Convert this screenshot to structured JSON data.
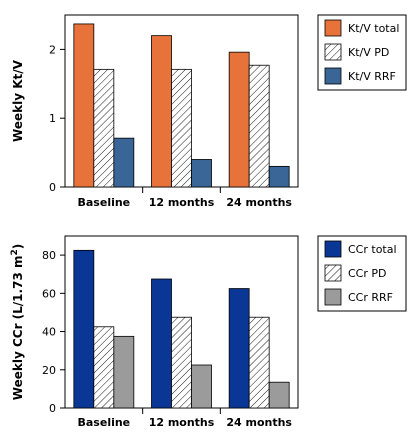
{
  "chart_data": [
    {
      "type": "bar",
      "categories": [
        "Baseline",
        "12 months",
        "24 months"
      ],
      "ylabel": "Weekly Kt/V",
      "xlabel": "",
      "ylim": [
        0,
        2.5
      ],
      "yticks": [
        "0",
        "1",
        "2"
      ],
      "yticks_values": [
        0,
        1,
        2
      ],
      "series": [
        {
          "name": "Kt/V total",
          "values": [
            2.37,
            2.2,
            1.96
          ],
          "color": "#e8733a",
          "pattern": "solid"
        },
        {
          "name": "Kt/V PD",
          "values": [
            1.71,
            1.71,
            1.77
          ],
          "color": "#ffffff",
          "pattern": "hatch"
        },
        {
          "name": "Kt/V RRF",
          "values": [
            0.71,
            0.4,
            0.3
          ],
          "color": "#3a6597",
          "pattern": "solid"
        }
      ],
      "grid": false,
      "legend_position": "right"
    },
    {
      "type": "bar",
      "categories": [
        "Baseline",
        "12 months",
        "24 months"
      ],
      "ylabel": "Weekly CCr (L/1.73 m",
      "ylabel_sup": "2",
      "ylabel_end": ")",
      "xlabel": "",
      "ylim": [
        0,
        90
      ],
      "yticks": [
        "0",
        "20",
        "40",
        "60",
        "80"
      ],
      "yticks_values": [
        0,
        20,
        40,
        60,
        80
      ],
      "series": [
        {
          "name": "CCr total",
          "values": [
            82.5,
            67.5,
            62.5
          ],
          "color": "#0a3796",
          "pattern": "solid"
        },
        {
          "name": "CCr PD",
          "values": [
            42.5,
            47.5,
            47.5
          ],
          "color": "#ffffff",
          "pattern": "hatch"
        },
        {
          "name": "CCr RRF",
          "values": [
            37.5,
            22.5,
            13.5
          ],
          "color": "#9b9b9b",
          "pattern": "solid"
        }
      ],
      "grid": false,
      "legend_position": "right"
    }
  ]
}
